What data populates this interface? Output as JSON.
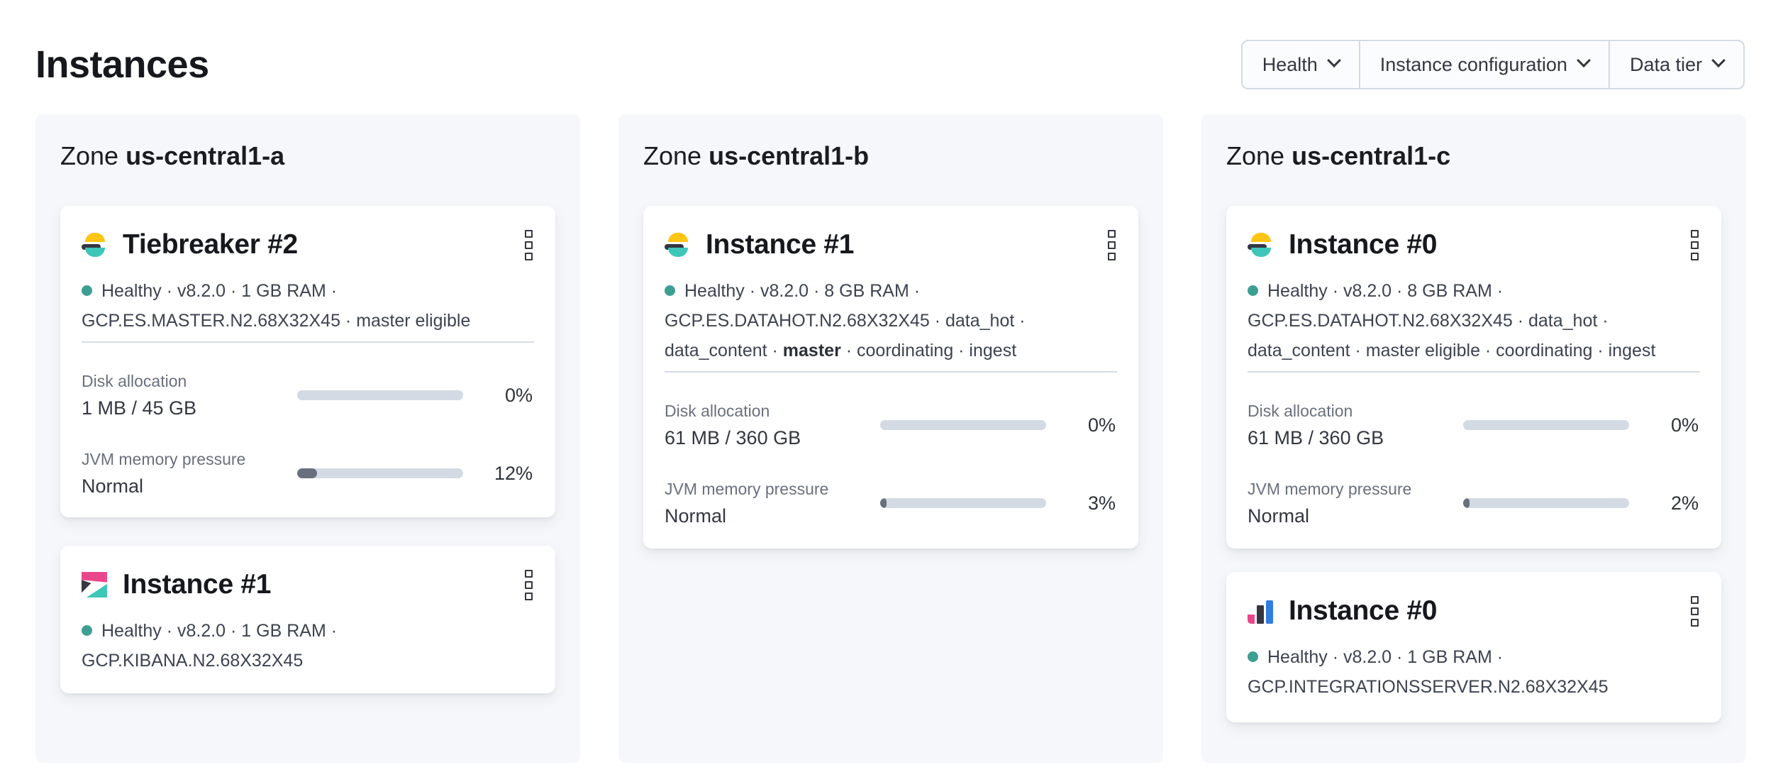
{
  "page": {
    "title": "Instances"
  },
  "filters": [
    {
      "label": "Health"
    },
    {
      "label": "Instance configuration"
    },
    {
      "label": "Data tier"
    }
  ],
  "colors": {
    "es_yellow": "#fec514",
    "es_dark": "#343741",
    "es_teal": "#3ec6b9",
    "kibana_pink": "#e9478b",
    "integrations_blue": "#2f7de1",
    "health_dot": "#3e9e94",
    "bar_fill": "#696f7d",
    "bar_track": "#d4dae4"
  },
  "zones": [
    {
      "label": "Zone",
      "name": "us-central1-a",
      "cards": [
        {
          "logo": "elasticsearch",
          "title": "Tiebreaker #2",
          "status_lines": [
            {
              "pre": "Healthy · v8.2.0 · 1 GB RAM ·"
            },
            {
              "pre": "GCP.ES.MASTER.N2.68X32X45 · master eligible"
            }
          ],
          "metrics": [
            {
              "label": "Disk allocation",
              "value": "1 MB / 45 GB",
              "percent": 0,
              "percent_label": "0%"
            },
            {
              "label": "JVM memory pressure",
              "value": "Normal",
              "percent": 12,
              "percent_label": "12%"
            }
          ]
        },
        {
          "logo": "kibana",
          "title": "Instance #1",
          "status_lines": [
            {
              "pre": "Healthy · v8.2.0 · 1 GB RAM ·"
            },
            {
              "pre": "GCP.KIBANA.N2.68X32X45"
            }
          ]
        }
      ]
    },
    {
      "label": "Zone",
      "name": "us-central1-b",
      "cards": [
        {
          "logo": "elasticsearch",
          "title": "Instance #1",
          "status_lines": [
            {
              "pre": "Healthy · v8.2.0 · 8 GB RAM ·"
            },
            {
              "pre": "GCP.ES.DATAHOT.N2.68X32X45 · data_hot ·"
            },
            {
              "pre": "data_content · ",
              "bold": "master",
              "post": " · coordinating · ingest"
            }
          ],
          "metrics": [
            {
              "label": "Disk allocation",
              "value": "61 MB / 360 GB",
              "percent": 0,
              "percent_label": "0%"
            },
            {
              "label": "JVM memory pressure",
              "value": "Normal",
              "percent": 3,
              "percent_label": "3%"
            }
          ]
        }
      ]
    },
    {
      "label": "Zone",
      "name": "us-central1-c",
      "cards": [
        {
          "logo": "elasticsearch",
          "title": "Instance #0",
          "status_lines": [
            {
              "pre": "Healthy · v8.2.0 · 8 GB RAM ·"
            },
            {
              "pre": "GCP.ES.DATAHOT.N2.68X32X45 · data_hot ·"
            },
            {
              "pre": "data_content · master eligible · coordinating · ingest"
            }
          ],
          "metrics": [
            {
              "label": "Disk allocation",
              "value": "61 MB / 360 GB",
              "percent": 0,
              "percent_label": "0%"
            },
            {
              "label": "JVM memory pressure",
              "value": "Normal",
              "percent": 2,
              "percent_label": "2%"
            }
          ]
        },
        {
          "logo": "integrations-server",
          "title": "Instance #0",
          "status_lines": [
            {
              "pre": "Healthy · v8.2.0 · 1 GB RAM ·"
            },
            {
              "pre": "GCP.INTEGRATIONSSERVER.N2.68X32X45"
            }
          ]
        }
      ]
    }
  ]
}
